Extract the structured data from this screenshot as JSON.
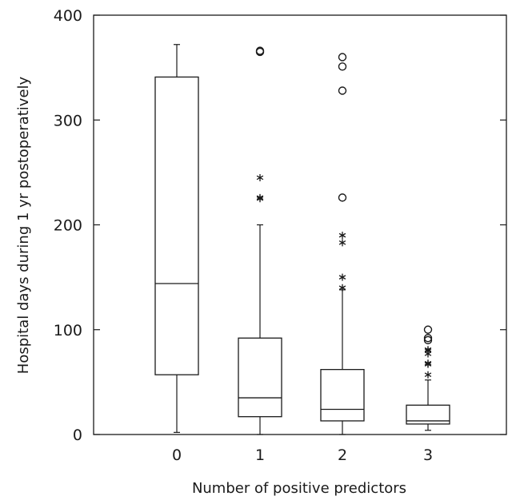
{
  "chart_data": {
    "type": "box",
    "title": "",
    "xlabel": "Number of positive predictors",
    "ylabel": "Hospital days during 1 yr postoperatively",
    "categories": [
      "0",
      "1",
      "2",
      "3"
    ],
    "ylim": [
      0,
      400
    ],
    "yticks": [
      0,
      100,
      200,
      300,
      400
    ],
    "grid": false,
    "boxes": [
      {
        "category": "0",
        "lower_whisker": 2,
        "q1": 57,
        "median": 144,
        "q3": 341,
        "upper_whisker": 372,
        "outliers_circle": [],
        "outliers_star": []
      },
      {
        "category": "1",
        "lower_whisker": 0,
        "q1": 17,
        "median": 35,
        "q3": 92,
        "upper_whisker": 200,
        "outliers_circle": [
          365,
          366
        ],
        "outliers_star": [
          225,
          226,
          245
        ]
      },
      {
        "category": "2",
        "lower_whisker": 0,
        "q1": 13,
        "median": 24,
        "q3": 62,
        "upper_whisker": 138,
        "outliers_circle": [
          226,
          328,
          351,
          360
        ],
        "outliers_star": [
          140,
          150,
          183,
          190
        ]
      },
      {
        "category": "3",
        "lower_whisker": 4,
        "q1": 10,
        "median": 13,
        "q3": 28,
        "upper_whisker": 52,
        "outliers_circle": [
          90,
          92,
          100
        ],
        "outliers_star": [
          57,
          67,
          68,
          77,
          80,
          81
        ]
      }
    ]
  }
}
